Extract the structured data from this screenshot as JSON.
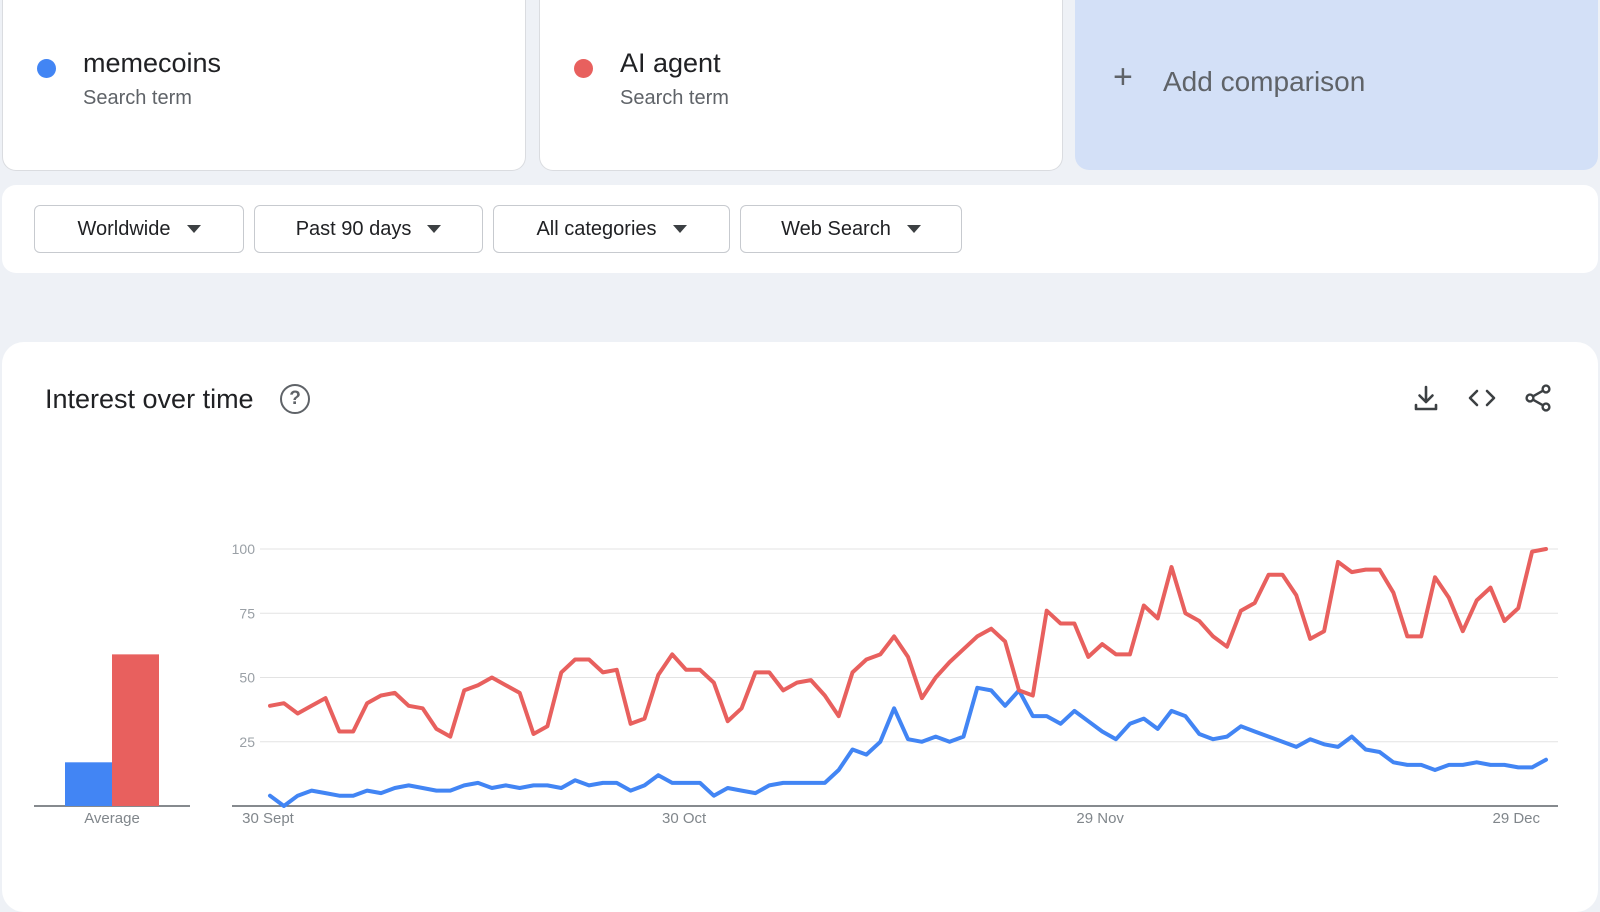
{
  "terms": [
    {
      "name": "memecoins",
      "type": "Search term",
      "color": "#4285f4"
    },
    {
      "name": "AI agent",
      "type": "Search term",
      "color": "#e8605e"
    }
  ],
  "add_comparison": {
    "icon": "plus-icon",
    "label": "Add comparison"
  },
  "filters": {
    "region": "Worldwide",
    "period": "Past 90 days",
    "category": "All categories",
    "search_type": "Web Search"
  },
  "chart_card": {
    "title": "Interest over time",
    "help_icon": "?",
    "actions": [
      "download-icon",
      "embed-code-icon",
      "share-icon"
    ]
  },
  "chart_data": [
    {
      "type": "bar",
      "categories": [
        "Average"
      ],
      "series": [
        {
          "name": "memecoins",
          "color": "#4285f4",
          "values": [
            17
          ]
        },
        {
          "name": "AI agent",
          "color": "#e8605e",
          "values": [
            59
          ]
        }
      ],
      "ylim": [
        0,
        100
      ]
    },
    {
      "type": "line",
      "x_tick_labels": [
        "30 Sept",
        "30 Oct",
        "29 Nov",
        "29 Dec"
      ],
      "x_tick_positions": [
        0,
        30,
        60,
        90
      ],
      "y_ticks": [
        25,
        50,
        75,
        100
      ],
      "y_tick_labels": [
        "25",
        "50",
        "75",
        "100"
      ],
      "ylim": [
        0,
        100
      ],
      "xlim": [
        0,
        92
      ],
      "grid": true,
      "series": [
        {
          "name": "memecoins",
          "color": "#4285f4",
          "values": [
            4,
            0,
            4,
            6,
            5,
            4,
            4,
            6,
            5,
            7,
            8,
            7,
            6,
            6,
            8,
            9,
            7,
            8,
            7,
            8,
            8,
            7,
            10,
            8,
            9,
            9,
            6,
            8,
            12,
            9,
            9,
            9,
            4,
            7,
            6,
            5,
            8,
            9,
            9,
            9,
            9,
            14,
            22,
            20,
            25,
            38,
            26,
            25,
            27,
            25,
            27,
            46,
            45,
            39,
            45,
            35,
            35,
            32,
            37,
            33,
            29,
            26,
            32,
            34,
            30,
            37,
            35,
            28,
            26,
            27,
            31,
            29,
            27,
            25,
            23,
            26,
            24,
            23,
            27,
            22,
            21,
            17,
            16,
            16,
            14,
            16,
            16,
            17,
            16,
            16,
            15,
            15,
            18
          ]
        },
        {
          "name": "AI agent",
          "color": "#e8605e",
          "values": [
            39,
            40,
            36,
            39,
            42,
            29,
            29,
            40,
            43,
            44,
            39,
            38,
            30,
            27,
            45,
            47,
            50,
            47,
            44,
            28,
            31,
            52,
            57,
            57,
            52,
            53,
            32,
            34,
            51,
            59,
            53,
            53,
            48,
            33,
            38,
            52,
            52,
            45,
            48,
            49,
            43,
            35,
            52,
            57,
            59,
            66,
            58,
            42,
            50,
            56,
            61,
            66,
            69,
            64,
            45,
            43,
            76,
            71,
            71,
            58,
            63,
            59,
            59,
            78,
            73,
            93,
            75,
            72,
            66,
            62,
            76,
            79,
            90,
            90,
            82,
            65,
            68,
            95,
            91,
            92,
            92,
            83,
            66,
            66,
            89,
            81,
            68,
            80,
            85,
            72,
            77,
            99,
            100
          ]
        }
      ]
    }
  ],
  "average_label": "Average"
}
